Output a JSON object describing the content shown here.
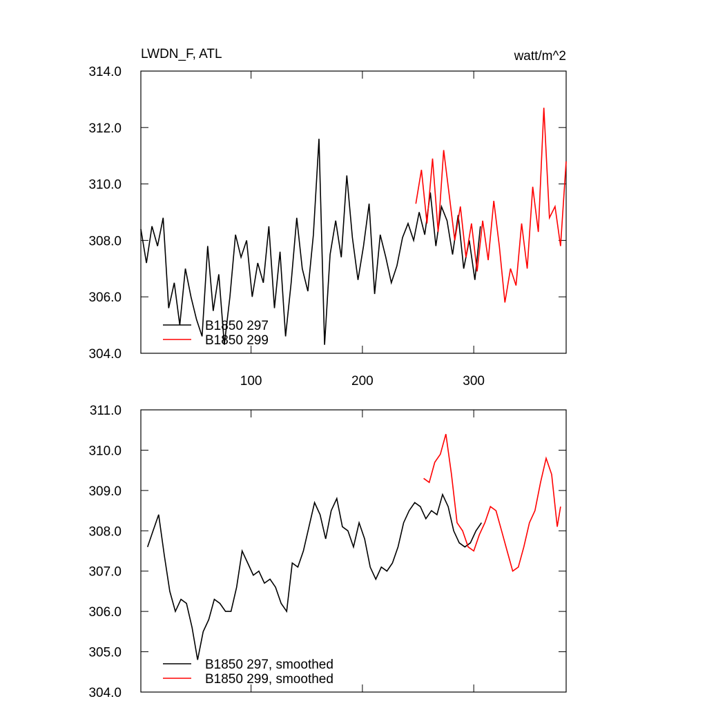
{
  "chart_data": [
    {
      "type": "line",
      "title": "LWDN_F, ATL",
      "subtitle": "watt/m^2",
      "xlim": [
        1,
        383
      ],
      "xticks": [
        100,
        200,
        300
      ],
      "ylim": [
        304,
        314
      ],
      "yticks": [
        {
          "value": 304,
          "label": "304.0"
        },
        {
          "value": 306,
          "label": "306.0"
        },
        {
          "value": 308,
          "label": "308.0"
        },
        {
          "value": 310,
          "label": "310.0"
        },
        {
          "value": 312,
          "label": "312.0"
        },
        {
          "value": 314,
          "label": "314.0"
        }
      ],
      "legend": "lower left",
      "series": [
        {
          "name": "B1850 297",
          "color": "#000000",
          "x": [
            1,
            6,
            11,
            16,
            21,
            26,
            31,
            36,
            41,
            46,
            51,
            56,
            61,
            66,
            71,
            76,
            81,
            86,
            91,
            96,
            101,
            106,
            111,
            116,
            121,
            126,
            131,
            136,
            141,
            146,
            151,
            156,
            161,
            166,
            171,
            176,
            181,
            186,
            191,
            196,
            201,
            206,
            211,
            216,
            221,
            226,
            231,
            236,
            241,
            246,
            251,
            256,
            261,
            266,
            271,
            276,
            281,
            286,
            291,
            296,
            301,
            306
          ],
          "values": [
            308.4,
            307.2,
            308.5,
            307.8,
            308.8,
            305.6,
            306.5,
            305.0,
            307.0,
            306.0,
            305.2,
            304.6,
            307.8,
            305.5,
            306.8,
            304.3,
            306.0,
            308.2,
            307.4,
            308.0,
            306.0,
            307.2,
            306.5,
            308.5,
            305.6,
            307.6,
            304.6,
            306.5,
            308.8,
            307.0,
            306.2,
            308.2,
            311.6,
            304.3,
            307.5,
            308.7,
            307.4,
            310.3,
            308.1,
            306.6,
            307.8,
            309.3,
            306.1,
            308.2,
            307.4,
            306.5,
            307.1,
            308.1,
            308.6,
            308.0,
            309.0,
            308.2,
            309.7,
            307.8,
            309.2,
            308.7,
            307.5,
            308.9,
            307.0,
            308.0,
            306.6,
            308.5
          ]
        },
        {
          "name": "B1850 299",
          "color": "#ff0000",
          "x": [
            248,
            253,
            258,
            263,
            268,
            273,
            278,
            283,
            288,
            293,
            298,
            303,
            308,
            313,
            318,
            323,
            328,
            333,
            338,
            343,
            348,
            353,
            358,
            363,
            368,
            373,
            378,
            383
          ],
          "values": [
            309.3,
            310.5,
            308.6,
            310.9,
            308.3,
            311.2,
            309.6,
            308.0,
            309.2,
            307.4,
            308.6,
            306.9,
            308.7,
            307.3,
            309.4,
            307.8,
            305.8,
            307.0,
            306.4,
            308.6,
            307.0,
            309.9,
            308.3,
            312.7,
            308.8,
            309.2,
            307.8,
            310.8
          ]
        }
      ]
    },
    {
      "type": "line",
      "xlim": [
        1,
        383
      ],
      "xticks": [
        100,
        200,
        300
      ],
      "ylim": [
        304,
        311
      ],
      "yticks": [
        {
          "value": 304,
          "label": "304.0"
        },
        {
          "value": 305,
          "label": "305.0"
        },
        {
          "value": 306,
          "label": "306.0"
        },
        {
          "value": 307,
          "label": "307.0"
        },
        {
          "value": 308,
          "label": "308.0"
        },
        {
          "value": 309,
          "label": "309.0"
        },
        {
          "value": 310,
          "label": "310.0"
        },
        {
          "value": 311,
          "label": "311.0"
        }
      ],
      "legend": "lower left",
      "series": [
        {
          "name": "B1850 297, smoothed",
          "color": "#000000",
          "x": [
            7,
            12,
            17,
            22,
            27,
            32,
            37,
            42,
            47,
            52,
            57,
            62,
            67,
            72,
            77,
            82,
            87,
            92,
            97,
            102,
            107,
            112,
            117,
            122,
            127,
            132,
            137,
            142,
            147,
            152,
            157,
            162,
            167,
            172,
            177,
            182,
            187,
            192,
            197,
            202,
            207,
            212,
            217,
            222,
            227,
            232,
            237,
            242,
            247,
            252,
            257,
            262,
            267,
            272,
            277,
            282,
            287,
            292,
            297,
            302,
            307
          ],
          "values": [
            307.6,
            308.0,
            308.4,
            307.4,
            306.5,
            306.0,
            306.3,
            306.2,
            305.6,
            304.8,
            305.5,
            305.8,
            306.3,
            306.2,
            306.0,
            306.0,
            306.6,
            307.5,
            307.2,
            306.9,
            307.0,
            306.7,
            306.8,
            306.6,
            306.2,
            306.0,
            307.2,
            307.1,
            307.5,
            308.1,
            308.7,
            308.4,
            307.8,
            308.5,
            308.8,
            308.1,
            308.0,
            307.6,
            308.2,
            307.8,
            307.1,
            306.8,
            307.1,
            307.0,
            307.2,
            307.6,
            308.2,
            308.5,
            308.7,
            308.6,
            308.3,
            308.5,
            308.4,
            308.9,
            308.6,
            308.0,
            307.7,
            307.6,
            307.7,
            308.0,
            308.2
          ]
        },
        {
          "name": "B1850 299, smoothed",
          "color": "#ff0000",
          "x": [
            255,
            260,
            265,
            270,
            275,
            280,
            285,
            290,
            295,
            300,
            305,
            310,
            315,
            320,
            325,
            330,
            335,
            340,
            345,
            350,
            355,
            360,
            365,
            370,
            375,
            378
          ],
          "values": [
            309.3,
            309.2,
            309.7,
            309.9,
            310.4,
            309.4,
            308.2,
            308.0,
            307.6,
            307.5,
            307.9,
            308.2,
            308.6,
            308.5,
            308.0,
            307.5,
            307.0,
            307.1,
            307.6,
            308.2,
            308.5,
            309.2,
            309.8,
            309.4,
            308.1,
            308.6
          ]
        }
      ]
    }
  ]
}
